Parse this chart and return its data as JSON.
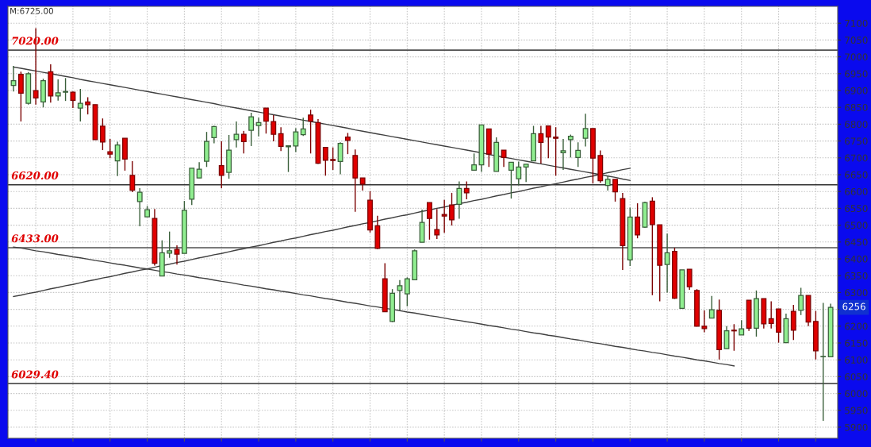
{
  "chart_data": {
    "type": "candlestick",
    "categories": [
      null,
      null,
      null,
      null,
      null,
      null,
      null,
      null,
      null,
      null,
      null,
      null,
      null,
      null,
      null,
      null,
      null,
      null,
      null,
      null,
      null,
      null,
      null,
      null,
      null,
      null,
      null,
      null,
      null,
      null,
      null,
      null,
      null,
      null,
      null,
      null,
      null,
      null,
      null,
      null,
      null,
      null,
      null,
      null,
      null,
      null,
      null,
      null,
      null,
      null,
      null,
      null,
      null,
      null,
      null,
      null,
      null,
      null,
      null,
      null,
      null,
      null,
      null,
      null,
      null,
      null,
      null,
      null,
      null,
      null,
      null,
      null,
      null,
      null,
      null,
      null,
      null,
      null,
      null,
      null,
      null,
      null,
      null,
      null,
      null,
      null,
      null,
      null,
      null,
      null,
      null,
      null,
      null,
      null,
      null,
      null,
      null,
      null,
      null,
      null,
      null,
      null,
      null,
      null,
      null,
      null,
      null,
      null,
      null,
      null,
      null
    ],
    "ohlc": [
      [
        6915,
        6973,
        6897,
        6929
      ],
      [
        6948,
        6956,
        6808,
        6892
      ],
      [
        6862,
        6955,
        6858,
        6950
      ],
      [
        6900,
        7085,
        6858,
        6878
      ],
      [
        6866,
        6935,
        6850,
        6929
      ],
      [
        6956,
        6978,
        6864,
        6884
      ],
      [
        6884,
        6933,
        6870,
        6893
      ],
      [
        6895,
        6937,
        6869,
        6897
      ],
      [
        6895,
        6897,
        6848,
        6871
      ],
      [
        6848,
        6905,
        6808,
        6862
      ],
      [
        6866,
        6880,
        6829,
        6858
      ],
      [
        6858,
        6858,
        6754,
        6754
      ],
      [
        6794,
        6817,
        6723,
        6747
      ],
      [
        6718,
        6756,
        6699,
        6711
      ],
      [
        6691,
        6748,
        6646,
        6738
      ],
      [
        6758,
        6758,
        6662,
        6696
      ],
      [
        6648,
        6690,
        6598,
        6604
      ],
      [
        6570,
        6610,
        6497,
        6598
      ],
      [
        6525,
        6557,
        6525,
        6546
      ],
      [
        6520,
        6548,
        6380,
        6387
      ],
      [
        6349,
        6455,
        6349,
        6418
      ],
      [
        6417,
        6481,
        6403,
        6424
      ],
      [
        6428,
        6440,
        6383,
        6414
      ],
      [
        6416,
        6572,
        6416,
        6544
      ],
      [
        6577,
        6669,
        6560,
        6669
      ],
      [
        6640,
        6687,
        6640,
        6666
      ],
      [
        6690,
        6777,
        6673,
        6749
      ],
      [
        6760,
        6795,
        6743,
        6793
      ],
      [
        6677,
        6749,
        6610,
        6648
      ],
      [
        6657,
        6768,
        6638,
        6723
      ],
      [
        6754,
        6808,
        6731,
        6770
      ],
      [
        6770,
        6780,
        6713,
        6748
      ],
      [
        6782,
        6834,
        6735,
        6822
      ],
      [
        6796,
        6819,
        6764,
        6805
      ],
      [
        6848,
        6848,
        6772,
        6809
      ],
      [
        6808,
        6827,
        6749,
        6770
      ],
      [
        6772,
        6791,
        6720,
        6734
      ],
      [
        6733,
        6737,
        6658,
        6736
      ],
      [
        6735,
        6788,
        6717,
        6777
      ],
      [
        6769,
        6819,
        6765,
        6786
      ],
      [
        6827,
        6843,
        6713,
        6809
      ],
      [
        6805,
        6815,
        6682,
        6684
      ],
      [
        6731,
        6731,
        6647,
        6693
      ],
      [
        6695,
        6731,
        6664,
        6692
      ],
      [
        6689,
        6746,
        6651,
        6743
      ],
      [
        6762,
        6774,
        6711,
        6752
      ],
      [
        6707,
        6725,
        6540,
        6640
      ],
      [
        6640,
        6640,
        6603,
        6622
      ],
      [
        6574,
        6601,
        6478,
        6486
      ],
      [
        6498,
        6528,
        6429,
        6431
      ],
      [
        6341,
        6387,
        6243,
        6243
      ],
      [
        6214,
        6310,
        6212,
        6298
      ],
      [
        6306,
        6337,
        6247,
        6320
      ],
      [
        6296,
        6345,
        6259,
        6341
      ],
      [
        6338,
        6428,
        6338,
        6424
      ],
      [
        6449,
        6546,
        6449,
        6508
      ],
      [
        6567,
        6567,
        6457,
        6520
      ],
      [
        6487,
        6548,
        6459,
        6471
      ],
      [
        6532,
        6575,
        6477,
        6527
      ],
      [
        6560,
        6596,
        6499,
        6516
      ],
      [
        6562,
        6630,
        6519,
        6609
      ],
      [
        6609,
        6630,
        6577,
        6596
      ],
      [
        6663,
        6713,
        6663,
        6679
      ],
      [
        6679,
        6798,
        6658,
        6798
      ],
      [
        6786,
        6786,
        6673,
        6711
      ],
      [
        6660,
        6761,
        6660,
        6746
      ],
      [
        6723,
        6723,
        6673,
        6701
      ],
      [
        6663,
        6687,
        6579,
        6687
      ],
      [
        6638,
        6689,
        6618,
        6673
      ],
      [
        6673,
        6681,
        6628,
        6681
      ],
      [
        6691,
        6795,
        6691,
        6772
      ],
      [
        6772,
        6795,
        6683,
        6746
      ],
      [
        6795,
        6795,
        6699,
        6762
      ],
      [
        6762,
        6791,
        6647,
        6758
      ],
      [
        6715,
        6756,
        6664,
        6721
      ],
      [
        6754,
        6769,
        6701,
        6764
      ],
      [
        6701,
        6746,
        6673,
        6722
      ],
      [
        6758,
        6831,
        6734,
        6787
      ],
      [
        6787,
        6787,
        6624,
        6699
      ],
      [
        6707,
        6722,
        6626,
        6632
      ],
      [
        6618,
        6645,
        6603,
        6636
      ],
      [
        6636,
        6636,
        6570,
        6599
      ],
      [
        6579,
        6596,
        6367,
        6439
      ],
      [
        6397,
        6552,
        6379,
        6524
      ],
      [
        6524,
        6565,
        6461,
        6471
      ],
      [
        6494,
        6570,
        6492,
        6567
      ],
      [
        6571,
        6583,
        6292,
        6502
      ],
      [
        6501,
        6501,
        6274,
        6381
      ],
      [
        6383,
        6475,
        6300,
        6418
      ],
      [
        6422,
        6433,
        6281,
        6283
      ],
      [
        6253,
        6367,
        6253,
        6367
      ],
      [
        6369,
        6369,
        6308,
        6317
      ],
      [
        6306,
        6310,
        6199,
        6200
      ],
      [
        6200,
        6247,
        6182,
        6193
      ],
      [
        6224,
        6290,
        6224,
        6249
      ],
      [
        6247,
        6279,
        6101,
        6130
      ],
      [
        6133,
        6200,
        6133,
        6186
      ],
      [
        6188,
        6206,
        6127,
        6186
      ],
      [
        6174,
        6218,
        6174,
        6192
      ],
      [
        6277,
        6277,
        6186,
        6194
      ],
      [
        6194,
        6306,
        6169,
        6282
      ],
      [
        6282,
        6282,
        6193,
        6207
      ],
      [
        6222,
        6274,
        6193,
        6208
      ],
      [
        6251,
        6251,
        6151,
        6182
      ],
      [
        6151,
        6237,
        6151,
        6222
      ],
      [
        6244,
        6263,
        6159,
        6188
      ],
      [
        6247,
        6314,
        6233,
        6291
      ],
      [
        6291,
        6291,
        6200,
        6212
      ],
      [
        6214,
        6245,
        6101,
        6127
      ],
      [
        6109,
        6269,
        5919,
        6110
      ],
      [
        6109,
        6267,
        6109,
        6256
      ]
    ],
    "colors": [
      "#90ee90",
      "#e00000",
      "#90ee90",
      "#e00000",
      "#90ee90",
      "#e00000",
      "#90ee90",
      "#90ee90",
      "#e00000",
      "#90ee90",
      "#e00000",
      "#e00000",
      "#e00000",
      "#e00000",
      "#90ee90",
      "#e00000",
      "#e00000",
      "#90ee90",
      "#90ee90",
      "#e00000",
      "#90ee90",
      "#90ee90",
      "#e00000",
      "#90ee90",
      "#90ee90",
      "#90ee90",
      "#90ee90",
      "#90ee90",
      "#e00000",
      "#90ee90",
      "#90ee90",
      "#e00000",
      "#90ee90",
      "#90ee90",
      "#e00000",
      "#e00000",
      "#e00000",
      "#90ee90",
      "#90ee90",
      "#90ee90",
      "#e00000",
      "#e00000",
      "#e00000",
      "#e00000",
      "#90ee90",
      "#e00000",
      "#e00000",
      "#e00000",
      "#e00000",
      "#e00000",
      "#e00000",
      "#90ee90",
      "#90ee90",
      "#90ee90",
      "#90ee90",
      "#90ee90",
      "#e00000",
      "#e00000",
      "#e00000",
      "#e00000",
      "#90ee90",
      "#e00000",
      "#90ee90",
      "#90ee90",
      "#e00000",
      "#90ee90",
      "#e00000",
      "#90ee90",
      "#90ee90",
      "#90ee90",
      "#90ee90",
      "#e00000",
      "#e00000",
      "#e00000",
      "#90ee90",
      "#90ee90",
      "#90ee90",
      "#90ee90",
      "#e00000",
      "#e00000",
      "#90ee90",
      "#e00000",
      "#e00000",
      "#90ee90",
      "#e00000",
      "#90ee90",
      "#e00000",
      "#e00000",
      "#90ee90",
      "#e00000",
      "#90ee90",
      "#e00000",
      "#e00000",
      "#e00000",
      "#90ee90",
      "#e00000",
      "#90ee90",
      "#e00000",
      "#90ee90",
      "#e00000",
      "#90ee90",
      "#e00000",
      "#e00000",
      "#e00000",
      "#90ee90",
      "#e00000",
      "#90ee90",
      "#e00000",
      "#e00000",
      "#90ee90",
      "#90ee90"
    ],
    "series": [
      {
        "type": "line",
        "color": "#404040",
        "values": [
          6970,
          6966,
          6962,
          6958,
          6954,
          6950,
          6946,
          6942,
          6938,
          6933,
          6929,
          6925,
          6921,
          6917,
          6913,
          6909,
          6905,
          6901,
          6897,
          6893,
          6889,
          6885,
          6881,
          6877,
          6873,
          6869,
          6865,
          6861,
          6856,
          6852,
          6848,
          6844,
          6840,
          6836,
          6832,
          6828,
          6824,
          6820,
          6816,
          6812,
          6808,
          6804,
          6800,
          6796,
          6792,
          6788,
          6783,
          6779,
          6775,
          6771,
          6767,
          6763,
          6759,
          6755,
          6751,
          6747,
          6743,
          6739,
          6735,
          6731,
          6727,
          6723,
          6719,
          6715,
          6710,
          6706,
          6702,
          6698,
          6694,
          6690,
          6686,
          6682,
          6678,
          6674,
          6670,
          6666,
          6662,
          6658,
          6654,
          6650,
          6646,
          6642,
          6637,
          6633,
          null,
          null,
          null,
          null,
          null,
          null,
          null,
          null,
          null,
          null,
          null,
          null,
          null,
          null,
          null,
          null,
          null,
          null,
          null,
          null,
          null,
          null,
          null,
          null,
          null,
          null,
          null
        ]
      },
      {
        "type": "line",
        "color": "#404040",
        "values": [
          6288,
          6292,
          6297,
          6301,
          6306,
          6311,
          6315,
          6320,
          6324,
          6329,
          6334,
          6338,
          6343,
          6347,
          6352,
          6357,
          6361,
          6366,
          6370,
          6375,
          6380,
          6384,
          6389,
          6393,
          6398,
          6403,
          6407,
          6412,
          6416,
          6421,
          6426,
          6430,
          6435,
          6439,
          6444,
          6449,
          6453,
          6458,
          6462,
          6467,
          6472,
          6476,
          6481,
          6485,
          6490,
          6495,
          6499,
          6504,
          6508,
          6513,
          6518,
          6522,
          6527,
          6531,
          6536,
          6541,
          6545,
          6550,
          6554,
          6559,
          6564,
          6568,
          6573,
          6577,
          6582,
          6587,
          6591,
          6596,
          6600,
          6605,
          6610,
          6614,
          6619,
          6623,
          6628,
          6633,
          6637,
          6642,
          6646,
          6651,
          6656,
          6660,
          6665,
          6669,
          null,
          null,
          null,
          null,
          null,
          null,
          null,
          null,
          null,
          null,
          null,
          null,
          null,
          null,
          null,
          null,
          null,
          null,
          null,
          null,
          null,
          null,
          null,
          null,
          null,
          null,
          null
        ]
      },
      {
        "type": "line",
        "color": "#404040",
        "values": [
          6435,
          6432,
          6428,
          6424,
          6421,
          6417,
          6413,
          6410,
          6406,
          6403,
          6399,
          6395,
          6392,
          6388,
          6384,
          6381,
          6377,
          6373,
          6370,
          6366,
          6362,
          6359,
          6355,
          6352,
          6348,
          6344,
          6341,
          6337,
          6333,
          6330,
          6326,
          6322,
          6319,
          6315,
          6311,
          6308,
          6304,
          6301,
          6297,
          6293,
          6290,
          6286,
          6282,
          6279,
          6275,
          6271,
          6268,
          6264,
          6260,
          6257,
          6253,
          6250,
          6246,
          6242,
          6239,
          6235,
          6231,
          6228,
          6224,
          6220,
          6217,
          6213,
          6210,
          6206,
          6202,
          6199,
          6195,
          6191,
          6188,
          6184,
          6180,
          6177,
          6173,
          6170,
          6166,
          6162,
          6159,
          6155,
          6151,
          6148,
          6144,
          6140,
          6137,
          6133,
          6129,
          6126,
          6122,
          6119,
          6115,
          6111,
          6108,
          6104,
          6100,
          6097,
          6093,
          6089,
          6086,
          6082,
          null,
          null,
          null,
          null,
          null,
          null,
          null,
          null,
          null,
          null,
          null,
          null,
          null
        ]
      }
    ],
    "ref_lines": [
      {
        "axis": "y",
        "value": 7020,
        "label": "7020.00",
        "color": "#505050"
      },
      {
        "axis": "y",
        "value": 6620,
        "label": "6620.00",
        "color": "#303030"
      },
      {
        "axis": "y",
        "value": 6433,
        "label": "6433.00",
        "color": "#505050"
      },
      {
        "axis": "y",
        "value": 6029.4,
        "label": "6029.40",
        "color": "#505050"
      }
    ],
    "annotations": [
      "M:6725.00",
      {
        "text": "6256",
        "y": 6256
      }
    ],
    "ylim": [
      5867,
      7150
    ],
    "yticks": [
      5900,
      5950,
      6000,
      6050,
      6100,
      6150,
      6200,
      {
        "value": 6250,
        "label": null
      },
      6300,
      6350,
      6400,
      6450,
      6500,
      6550,
      6600,
      6650,
      6700,
      6750,
      6800,
      6850,
      6900,
      6950,
      7000,
      7050,
      7100
    ],
    "tick_labels": "y",
    "grid": true
  }
}
